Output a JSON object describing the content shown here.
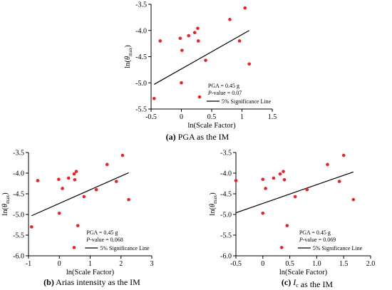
{
  "chart_data": [
    {
      "type": "scatter",
      "panel_letter": "(a)",
      "caption": "PGA as the IM",
      "caption_parts": [
        {
          "text": "(a)",
          "style": "bold"
        },
        {
          "text": " PGA as the IM",
          "style": "normal"
        }
      ],
      "xlabel": "ln(Scale Factor)",
      "ylabel": "ln(θmax)",
      "xlim": [
        -0.5,
        1.5
      ],
      "ylim": [
        -5.5,
        -3.5
      ],
      "xticks": [
        -0.5,
        0,
        0.5,
        1,
        1.5
      ],
      "xtick_labels": [
        "-0.5",
        "0",
        "0.5",
        "1",
        "1.5"
      ],
      "yticks": [
        -3.5,
        -4.0,
        -4.5,
        -5.0,
        -5.5
      ],
      "ytick_labels": [
        "-3.5",
        "-4.0",
        "-4.5",
        "-5.0",
        "-5.5"
      ],
      "points": [
        {
          "x": -0.45,
          "y": -5.3
        },
        {
          "x": -0.35,
          "y": -4.2
        },
        {
          "x": -0.02,
          "y": -4.15
        },
        {
          "x": 0.0,
          "y": -5.0
        },
        {
          "x": 0.01,
          "y": -4.38
        },
        {
          "x": 0.12,
          "y": -4.1
        },
        {
          "x": 0.22,
          "y": -4.04
        },
        {
          "x": 0.27,
          "y": -3.96
        },
        {
          "x": 0.28,
          "y": -4.2
        },
        {
          "x": 0.3,
          "y": -5.27
        },
        {
          "x": 0.4,
          "y": -4.57
        },
        {
          "x": 0.8,
          "y": -3.79
        },
        {
          "x": 0.96,
          "y": -4.2
        },
        {
          "x": 1.05,
          "y": -3.57
        },
        {
          "x": 1.12,
          "y": -4.64
        }
      ],
      "line": {
        "x": [
          -0.45,
          1.12
        ],
        "y": [
          -5.03,
          -4.0
        ]
      },
      "annotation_lines": [
        "PGA = 0.45 g",
        "P-value = 0.07"
      ],
      "legend_label": "5% Significance Line",
      "colors": {
        "points": "#ee2222",
        "line": "#000000"
      }
    },
    {
      "type": "scatter",
      "panel_letter": "(b)",
      "caption": "Arias intensity as the IM",
      "caption_parts": [
        {
          "text": "(b)",
          "style": "bold"
        },
        {
          "text": " Arias intensity as the IM",
          "style": "normal"
        }
      ],
      "xlabel": "ln(Scale Factor)",
      "ylabel": "ln(θmax)",
      "xlim": [
        -1,
        3
      ],
      "ylim": [
        -6.0,
        -3.5
      ],
      "xticks": [
        -1,
        0,
        1,
        2,
        3
      ],
      "xtick_labels": [
        "-1",
        "0",
        "1",
        "2",
        "3"
      ],
      "yticks": [
        -3.5,
        -4.0,
        -4.5,
        -5.0,
        -5.5,
        -6.0
      ],
      "ytick_labels": [
        "-3.5",
        "-4.0",
        "-4.5",
        "-5.0",
        "-5.5",
        "-6.0"
      ],
      "points": [
        {
          "x": -0.9,
          "y": -5.3
        },
        {
          "x": -0.7,
          "y": -4.18
        },
        {
          "x": -0.02,
          "y": -4.15
        },
        {
          "x": 0.0,
          "y": -4.97
        },
        {
          "x": 0.1,
          "y": -4.37
        },
        {
          "x": 0.3,
          "y": -4.12
        },
        {
          "x": 0.48,
          "y": -4.02
        },
        {
          "x": 0.5,
          "y": -4.16
        },
        {
          "x": 0.55,
          "y": -3.96
        },
        {
          "x": 0.6,
          "y": -5.27
        },
        {
          "x": 0.48,
          "y": -5.8
        },
        {
          "x": 0.8,
          "y": -4.57
        },
        {
          "x": 1.2,
          "y": -4.4
        },
        {
          "x": 1.55,
          "y": -3.79
        },
        {
          "x": 1.85,
          "y": -4.2
        },
        {
          "x": 2.05,
          "y": -3.57
        },
        {
          "x": 2.25,
          "y": -4.64
        }
      ],
      "line": {
        "x": [
          -0.9,
          2.25
        ],
        "y": [
          -5.03,
          -3.99
        ]
      },
      "annotation_lines": [
        "PGA = 0.45 g",
        "P-value = 0.068"
      ],
      "legend_label": "5% Significance Line",
      "colors": {
        "points": "#ee2222",
        "line": "#000000"
      }
    },
    {
      "type": "scatter",
      "panel_letter": "(c)",
      "caption": "as the IM",
      "caption_parts": [
        {
          "text": "(c)",
          "style": "bold"
        },
        {
          "text": " ",
          "style": "normal"
        },
        {
          "text": "I",
          "style": "italic"
        },
        {
          "text": "c",
          "style": "sub"
        },
        {
          "text": " as the IM",
          "style": "normal"
        }
      ],
      "xlabel": "ln(Scale Factor)",
      "ylabel": "ln(θmax)",
      "xlim": [
        -0.5,
        2.0
      ],
      "ylim": [
        -6.0,
        -3.5
      ],
      "xticks": [
        -0.5,
        0,
        0.5,
        1.0,
        1.5,
        2.0
      ],
      "xtick_labels": [
        "-0.5",
        "0",
        "0.5",
        "1.0",
        "1.5",
        "2.0"
      ],
      "yticks": [
        -3.5,
        -4.0,
        -4.5,
        -5.0,
        -5.5,
        -6.0
      ],
      "ytick_labels": [
        "-3.5",
        "-4.0",
        "-4.5",
        "-5.0",
        "-5.5",
        "-6.0"
      ],
      "points": [
        {
          "x": -0.5,
          "y": -4.18
        },
        {
          "x": 0.0,
          "y": -4.15
        },
        {
          "x": 0.0,
          "y": -4.97
        },
        {
          "x": 0.05,
          "y": -4.37
        },
        {
          "x": 0.2,
          "y": -4.12
        },
        {
          "x": 0.32,
          "y": -4.02
        },
        {
          "x": 0.38,
          "y": -3.96
        },
        {
          "x": 0.4,
          "y": -4.16
        },
        {
          "x": 0.45,
          "y": -5.27
        },
        {
          "x": 0.35,
          "y": -5.8
        },
        {
          "x": 0.6,
          "y": -4.57
        },
        {
          "x": 0.82,
          "y": -4.4
        },
        {
          "x": 1.2,
          "y": -3.79
        },
        {
          "x": 1.42,
          "y": -4.2
        },
        {
          "x": 1.5,
          "y": -3.57
        },
        {
          "x": 1.68,
          "y": -4.64
        }
      ],
      "line": {
        "x": [
          -0.5,
          1.68
        ],
        "y": [
          -4.96,
          -3.97
        ]
      },
      "annotation_lines": [
        "PGA = 0.45 g",
        "P-value = 0.069"
      ],
      "legend_label": "5% Significance Line",
      "colors": {
        "points": "#ee2222",
        "line": "#000000"
      }
    }
  ]
}
